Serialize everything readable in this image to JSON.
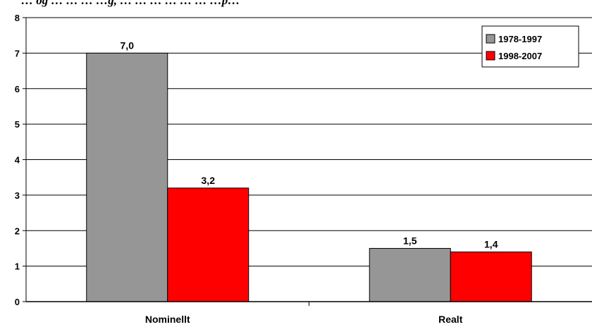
{
  "title": "… og … … … …g, … … … … … … …p…",
  "chart_data": {
    "type": "bar",
    "categories": [
      "Nominellt",
      "Realt"
    ],
    "series": [
      {
        "name": "1978-1997",
        "values": [
          7.0,
          1.5
        ],
        "labels": [
          "7,0",
          "1,5"
        ],
        "color": "#969696"
      },
      {
        "name": "1998-2007",
        "values": [
          3.2,
          1.4
        ],
        "labels": [
          "3,2",
          "1,4"
        ],
        "color": "#ff0000"
      }
    ],
    "ylim": [
      0,
      8
    ],
    "yticks": [
      0,
      1,
      2,
      3,
      4,
      5,
      6,
      7,
      8
    ],
    "grid": true,
    "legend_position": "top-right"
  }
}
